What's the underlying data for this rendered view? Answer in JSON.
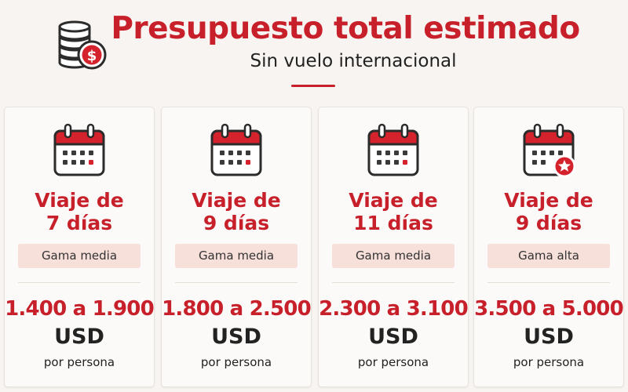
{
  "header": {
    "title": "Presupuesto total estimado",
    "subtitle": "Sin vuelo internacional",
    "icon": "coins-dollar-icon"
  },
  "colors": {
    "accent": "#c8202a",
    "tag_background": "#f7dfda",
    "card_background": "#fbfaf8",
    "page_background": "#f7f4f1"
  },
  "cards": [
    {
      "trip_line1": "Viaje de",
      "trip_line2": "7 días",
      "range": "Gama media",
      "price": "1.400 a 1.900",
      "currency": "USD",
      "per": "por persona",
      "icon": "calendar-icon"
    },
    {
      "trip_line1": "Viaje de",
      "trip_line2": "9 días",
      "range": "Gama media",
      "price": "1.800 a 2.500",
      "currency": "USD",
      "per": "por persona",
      "icon": "calendar-icon"
    },
    {
      "trip_line1": "Viaje de",
      "trip_line2": "11 días",
      "range": "Gama media",
      "price": "2.300 a 3.100",
      "currency": "USD",
      "per": "por persona",
      "icon": "calendar-icon"
    },
    {
      "trip_line1": "Viaje de",
      "trip_line2": "9 días",
      "range": "Gama alta",
      "price": "3.500 a 5.000",
      "currency": "USD",
      "per": "por persona",
      "icon": "calendar-star-icon"
    }
  ]
}
